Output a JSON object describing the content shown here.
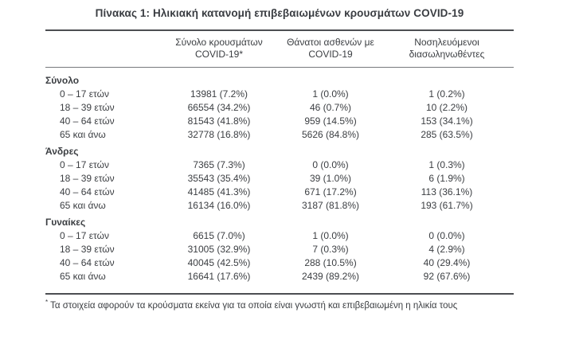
{
  "title": "Πίνακας 1: Ηλικιακή κατανομή επιβεβαιωμένων κρουσμάτων COVID-19",
  "table": {
    "columns": [
      {
        "line1": "",
        "line2": ""
      },
      {
        "line1": "Σύνολο κρουσμάτων",
        "line2": "COVID-19*"
      },
      {
        "line1": "Θάνατοι ασθενών με",
        "line2": "COVID-19"
      },
      {
        "line1": "Νοσηλευόμενοι",
        "line2": "διασωληνωθέντες"
      }
    ],
    "sections": [
      {
        "header": "Σύνολο",
        "rows": [
          {
            "label": "0 – 17 ετών",
            "cases": "13981 (7.2%)",
            "deaths": "1 (0.0%)",
            "intubated": "1 (0.2%)"
          },
          {
            "label": "18 – 39 ετών",
            "cases": "66554 (34.2%)",
            "deaths": "46 (0.7%)",
            "intubated": "10 (2.2%)"
          },
          {
            "label": "40 – 64 ετών",
            "cases": "81543 (41.8%)",
            "deaths": "959 (14.5%)",
            "intubated": "153 (34.1%)"
          },
          {
            "label": "65 και άνω",
            "cases": "32778 (16.8%)",
            "deaths": "5626 (84.8%)",
            "intubated": "285 (63.5%)"
          }
        ]
      },
      {
        "header": "Άνδρες",
        "rows": [
          {
            "label": "0 – 17 ετών",
            "cases": "7365 (7.3%)",
            "deaths": "0 (0.0%)",
            "intubated": "1 (0.3%)"
          },
          {
            "label": "18 – 39 ετών",
            "cases": "35543 (35.4%)",
            "deaths": "39 (1.0%)",
            "intubated": "6 (1.9%)"
          },
          {
            "label": "40 – 64 ετών",
            "cases": "41485 (41.3%)",
            "deaths": "671 (17.2%)",
            "intubated": "113 (36.1%)"
          },
          {
            "label": "65 και άνω",
            "cases": "16134 (16.0%)",
            "deaths": "3187 (81.8%)",
            "intubated": "193 (61.7%)"
          }
        ]
      },
      {
        "header": "Γυναίκες",
        "rows": [
          {
            "label": "0 – 17 ετών",
            "cases": "6615 (7.0%)",
            "deaths": "1 (0.0%)",
            "intubated": "0 (0.0%)"
          },
          {
            "label": "18 – 39 ετών",
            "cases": "31005 (32.9%)",
            "deaths": "7 (0.3%)",
            "intubated": "4 (2.9%)"
          },
          {
            "label": "40 – 64 ετών",
            "cases": "40045 (42.5%)",
            "deaths": "288 (10.5%)",
            "intubated": "40 (29.4%)"
          },
          {
            "label": "65 και άνω",
            "cases": "16641 (17.6%)",
            "deaths": "2439 (89.2%)",
            "intubated": "92 (67.6%)"
          }
        ]
      }
    ],
    "footnote_marker": "*",
    "footnote": "Τα στοιχεία αφορούν τα κρούσματα εκείνα για τα οποία είναι γνωστή και επιβεβαιωμένη η ηλικία τους"
  },
  "colors": {
    "text": "#3b3e42",
    "rule_heavy": "#4c4e52",
    "rule_light": "#77797c",
    "background": "#ffffff"
  }
}
